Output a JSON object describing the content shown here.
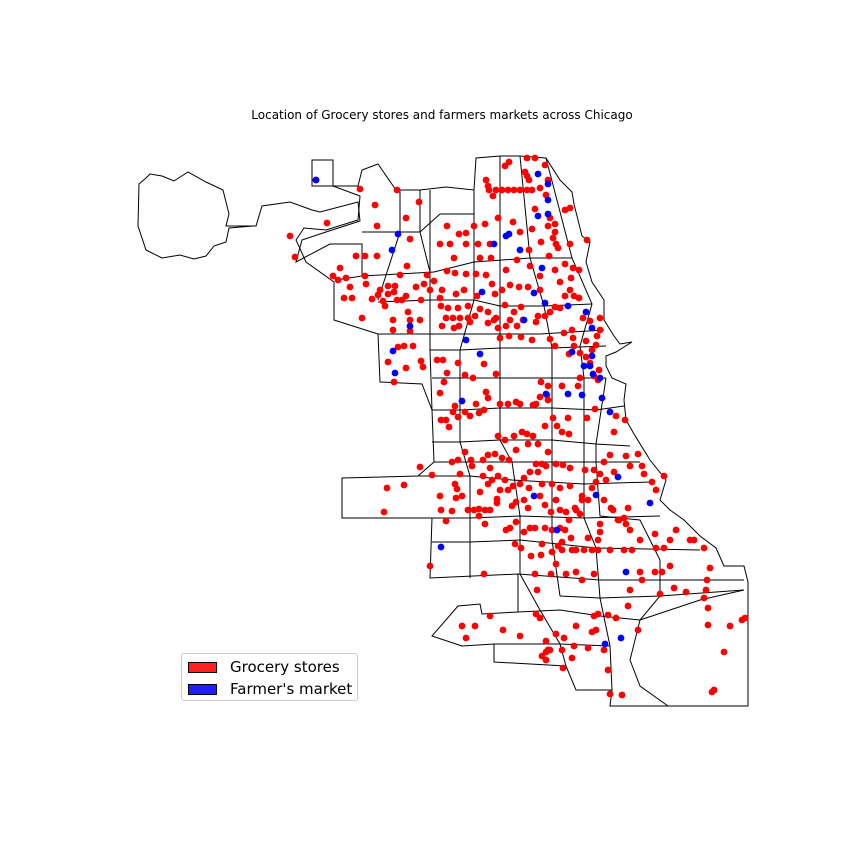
{
  "chart_data": {
    "type": "scatter",
    "title": "Location of Grocery stores and farmers markets across Chicago",
    "legend_placement": "lower-left",
    "grid": false,
    "series": [
      {
        "name": "Grocery stores",
        "color": "#ff0000"
      },
      {
        "name": "Farmer's market",
        "color": "#0000ff"
      }
    ]
  },
  "legend": {
    "grocery_label": "Grocery stores",
    "farmers_label": "Farmer's market",
    "grocery_color": "#ff2020",
    "farmers_color": "#2020ff"
  }
}
